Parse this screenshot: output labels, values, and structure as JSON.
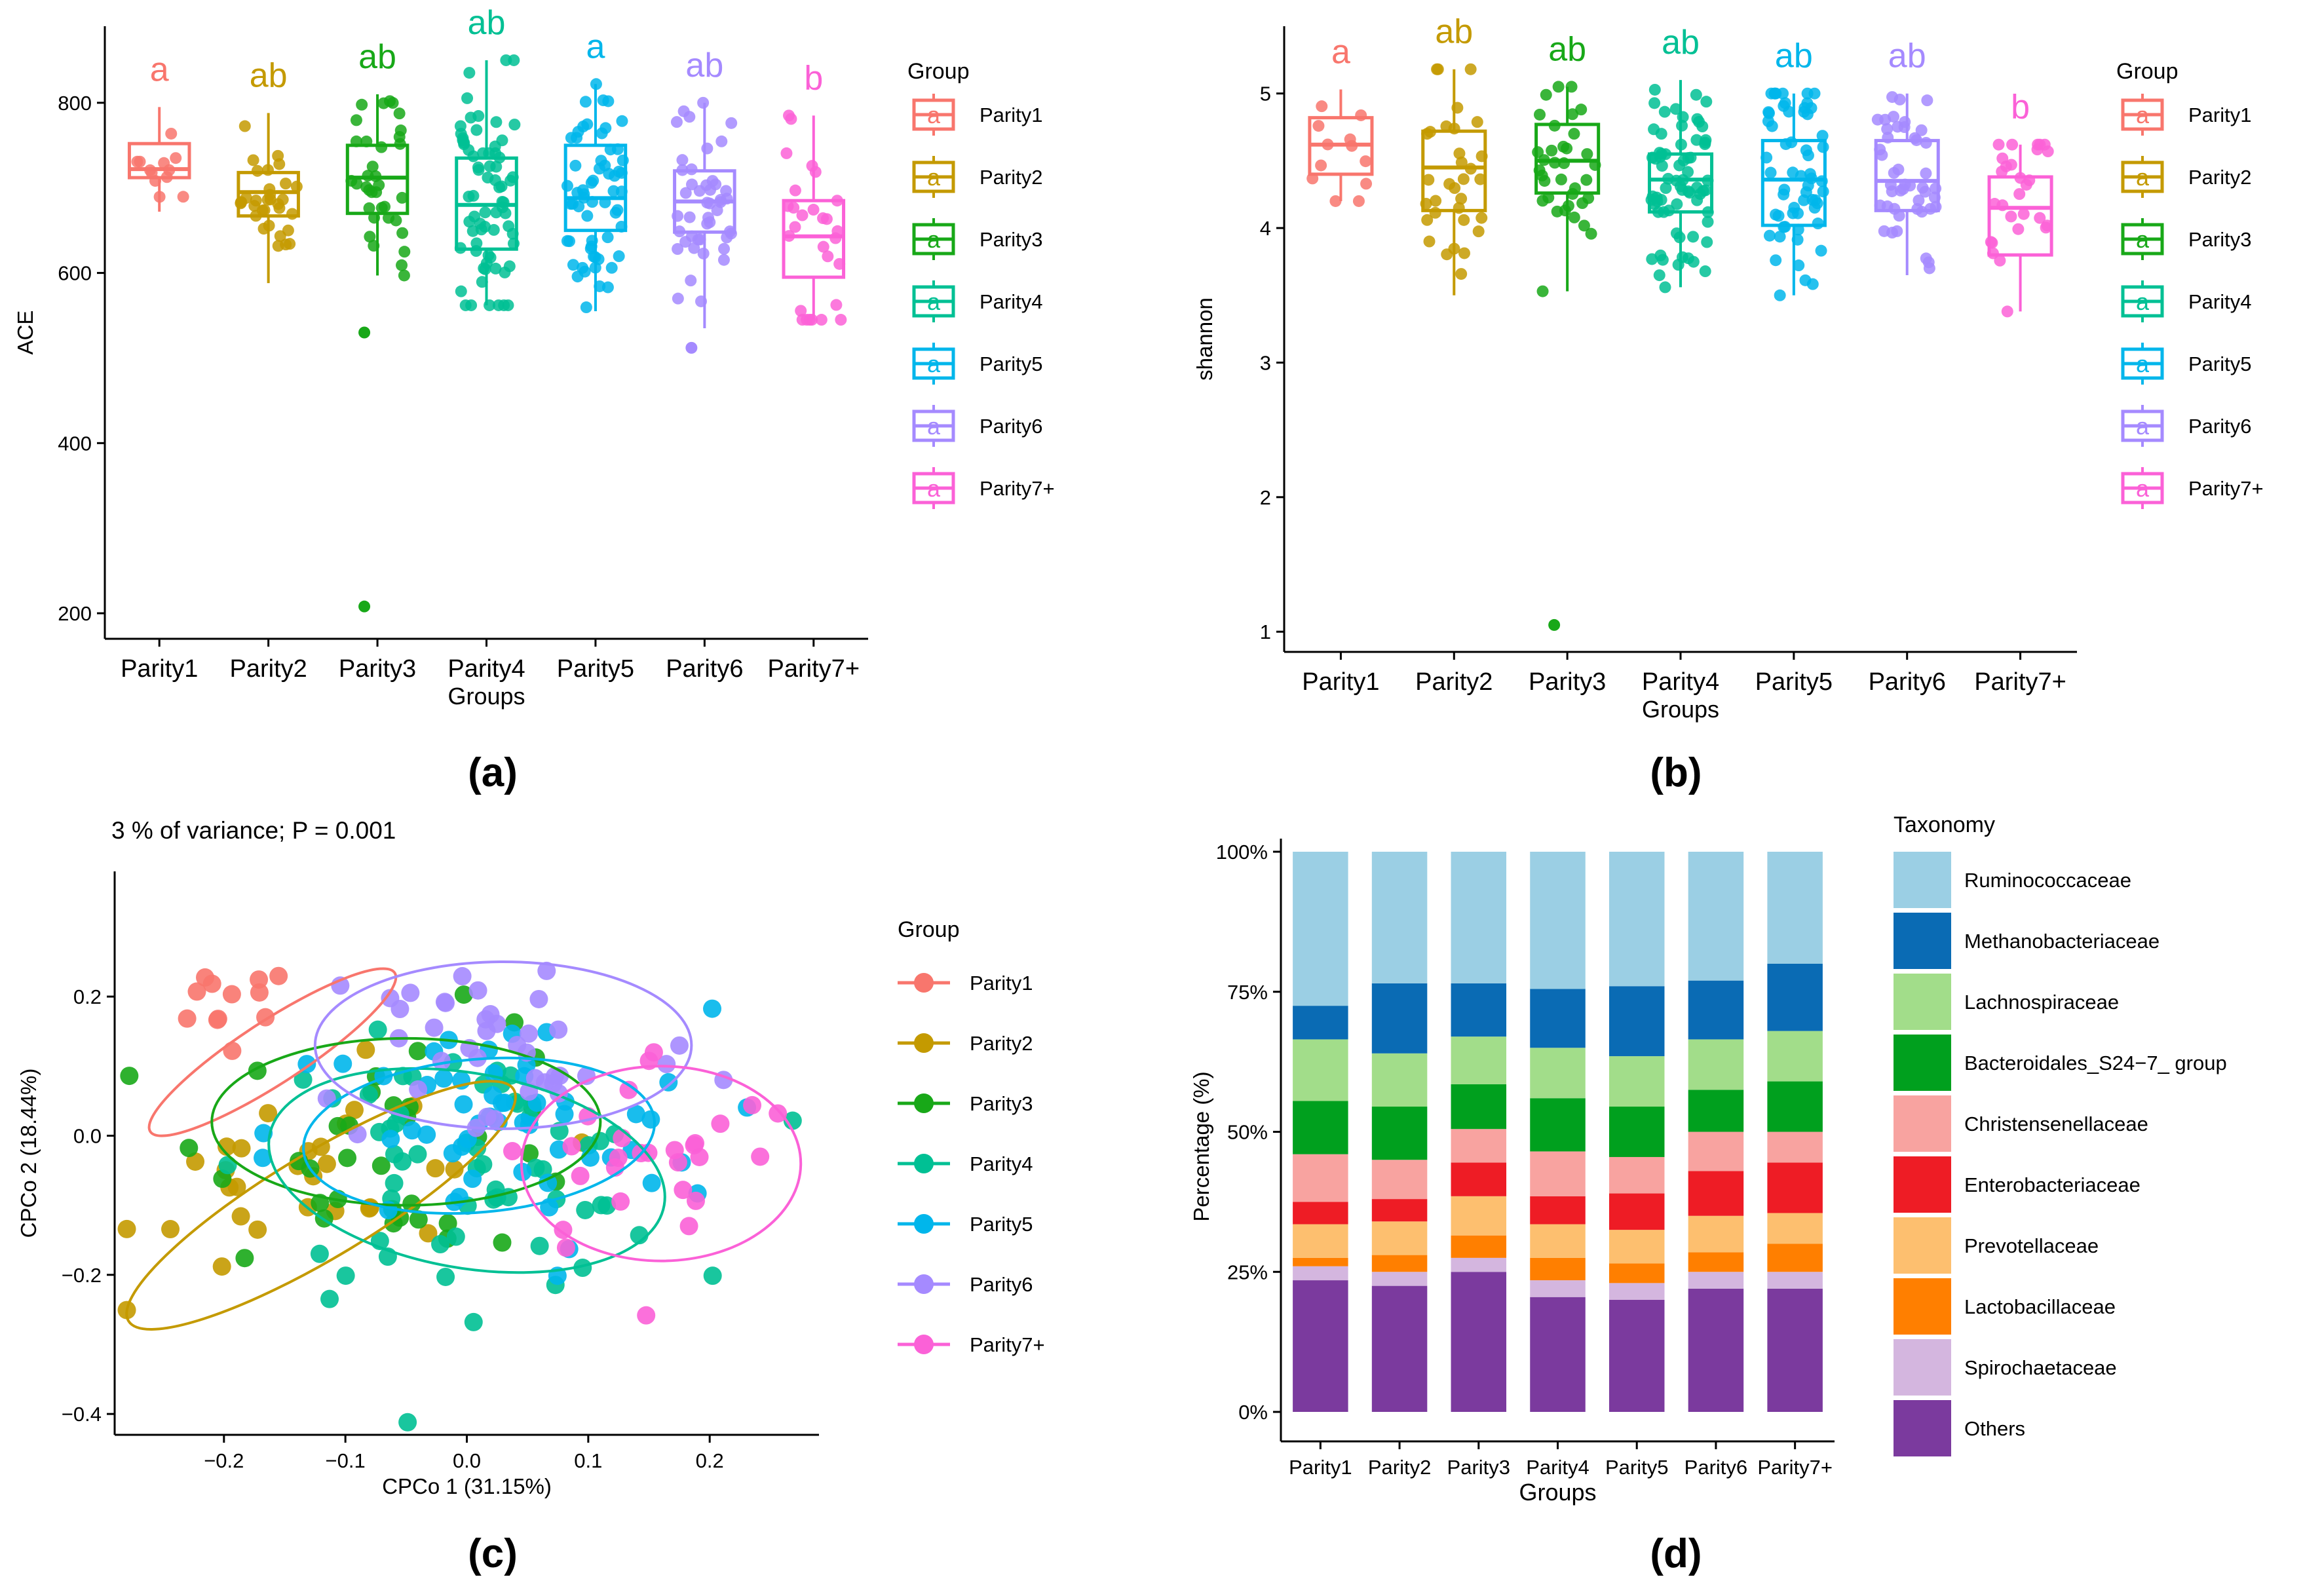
{
  "groups": [
    "Parity1",
    "Parity2",
    "Parity3",
    "Parity4",
    "Parity5",
    "Parity6",
    "Parity7+"
  ],
  "colors": {
    "Parity1": "#F8766D",
    "Parity2": "#C49A00",
    "Parity3": "#18A818",
    "Parity4": "#00C094",
    "Parity5": "#00B6EB",
    "Parity6": "#A58AFF",
    "Parity7+": "#FB61D7"
  },
  "chart_data": [
    {
      "panel": "(a)",
      "type": "box",
      "title": "",
      "xlabel": "Groups",
      "ylabel": "ACE",
      "ylim": [
        170,
        890
      ],
      "yticks": [
        200,
        400,
        600,
        800
      ],
      "categories": [
        "Parity1",
        "Parity2",
        "Parity3",
        "Parity4",
        "Parity5",
        "Parity6",
        "Parity7+"
      ],
      "letters": [
        "a",
        "ab",
        "ab",
        "ab",
        "a",
        "ab",
        "b"
      ],
      "boxes": [
        {
          "min": 672,
          "q1": 712,
          "median": 722,
          "q3": 752,
          "max": 795
        },
        {
          "min": 588,
          "q1": 667,
          "median": 695,
          "q3": 718,
          "max": 788
        },
        {
          "min": 597,
          "q1": 670,
          "median": 712,
          "q3": 750,
          "max": 810
        },
        {
          "min": 562,
          "q1": 628,
          "median": 680,
          "q3": 735,
          "max": 850
        },
        {
          "min": 555,
          "q1": 650,
          "median": 688,
          "q3": 750,
          "max": 822
        },
        {
          "min": 535,
          "q1": 648,
          "median": 684,
          "q3": 720,
          "max": 800
        },
        {
          "min": 545,
          "q1": 595,
          "median": 643,
          "q3": 685,
          "max": 785
        }
      ],
      "outliers": [
        {
          "group": "Parity3",
          "value": 208
        },
        {
          "group": "Parity3",
          "value": 530
        },
        {
          "group": "Parity6",
          "value": 512
        }
      ],
      "point_counts": [
        12,
        32,
        35,
        70,
        60,
        45,
        28
      ],
      "legend_title": "Group",
      "legend_position": "right"
    },
    {
      "panel": "(b)",
      "type": "box",
      "title": "",
      "xlabel": "Groups",
      "ylabel": "shannon",
      "ylim": [
        0.85,
        5.5
      ],
      "yticks": [
        1,
        2,
        3,
        4,
        5
      ],
      "categories": [
        "Parity1",
        "Parity2",
        "Parity3",
        "Parity4",
        "Parity5",
        "Parity6",
        "Parity7+"
      ],
      "letters": [
        "a",
        "ab",
        "ab",
        "ab",
        "ab",
        "ab",
        "b"
      ],
      "boxes": [
        {
          "min": 4.2,
          "q1": 4.4,
          "median": 4.62,
          "q3": 4.82,
          "max": 5.03
        },
        {
          "min": 3.5,
          "q1": 4.13,
          "median": 4.45,
          "q3": 4.72,
          "max": 5.18
        },
        {
          "min": 3.53,
          "q1": 4.26,
          "median": 4.5,
          "q3": 4.77,
          "max": 5.05
        },
        {
          "min": 3.56,
          "q1": 4.12,
          "median": 4.36,
          "q3": 4.55,
          "max": 5.1
        },
        {
          "min": 3.5,
          "q1": 4.02,
          "median": 4.36,
          "q3": 4.65,
          "max": 5.0
        },
        {
          "min": 3.65,
          "q1": 4.13,
          "median": 4.35,
          "q3": 4.65,
          "max": 5.0
        },
        {
          "min": 3.38,
          "q1": 3.8,
          "median": 4.15,
          "q3": 4.38,
          "max": 4.62
        }
      ],
      "outliers": [
        {
          "group": "Parity3",
          "value": 1.05
        }
      ],
      "point_counts": [
        12,
        32,
        35,
        70,
        60,
        45,
        28
      ],
      "legend_title": "Group",
      "legend_position": "right"
    },
    {
      "panel": "(c)",
      "type": "scatter",
      "title": "3 % of variance; P = 0.001",
      "xlabel": "CPCo 1 (31.15%)",
      "ylabel": "CPCo 2 (18.44%)",
      "xlim": [
        -0.29,
        0.29
      ],
      "ylim": [
        -0.43,
        0.38
      ],
      "xticks": [
        -0.2,
        -0.1,
        0.0,
        0.1,
        0.2
      ],
      "yticks": [
        -0.4,
        -0.2,
        0.0,
        0.2
      ],
      "xtick_labels": [
        "−0.2",
        "−0.1",
        "0.0",
        "0.1",
        "0.2"
      ],
      "ytick_labels": [
        "−0.4",
        "−0.2",
        "0.0",
        "0.2"
      ],
      "ellipses": [
        {
          "group": "Parity1",
          "cx": -0.16,
          "cy": 0.12,
          "rx": 0.12,
          "ry": 0.045,
          "angle_deg": 33
        },
        {
          "group": "Parity2",
          "cx": -0.12,
          "cy": -0.1,
          "rx": 0.185,
          "ry": 0.075,
          "angle_deg": 31
        },
        {
          "group": "Parity3",
          "cx": -0.05,
          "cy": 0.02,
          "rx": 0.16,
          "ry": 0.12,
          "angle_deg": 0
        },
        {
          "group": "Parity4",
          "cx": 0.0,
          "cy": -0.05,
          "rx": 0.165,
          "ry": 0.14,
          "angle_deg": -10
        },
        {
          "group": "Parity5",
          "cx": 0.01,
          "cy": 0.0,
          "rx": 0.145,
          "ry": 0.11,
          "angle_deg": 5
        },
        {
          "group": "Parity6",
          "cx": 0.03,
          "cy": 0.13,
          "rx": 0.155,
          "ry": 0.12,
          "angle_deg": 0
        },
        {
          "group": "Parity7+",
          "cx": 0.16,
          "cy": -0.04,
          "rx": 0.115,
          "ry": 0.14,
          "angle_deg": 0
        }
      ],
      "clusters": [
        {
          "group": "Parity1",
          "n": 12,
          "cx": -0.2,
          "cy": 0.18,
          "sx": 0.03,
          "sy": 0.035
        },
        {
          "group": "Parity2",
          "n": 30,
          "cx": -0.11,
          "cy": -0.06,
          "sx": 0.085,
          "sy": 0.075
        },
        {
          "group": "Parity3",
          "n": 35,
          "cx": -0.05,
          "cy": 0.0,
          "sx": 0.08,
          "sy": 0.085
        },
        {
          "group": "Parity4",
          "n": 60,
          "cx": 0.0,
          "cy": -0.05,
          "sx": 0.085,
          "sy": 0.09
        },
        {
          "group": "Parity5",
          "n": 55,
          "cx": 0.02,
          "cy": 0.0,
          "sx": 0.09,
          "sy": 0.09
        },
        {
          "group": "Parity6",
          "n": 40,
          "cx": 0.03,
          "cy": 0.13,
          "sx": 0.085,
          "sy": 0.08
        },
        {
          "group": "Parity7+",
          "n": 28,
          "cx": 0.16,
          "cy": -0.03,
          "sx": 0.065,
          "sy": 0.08
        }
      ],
      "legend_title": "Group",
      "legend_position": "right"
    },
    {
      "panel": "(d)",
      "type": "stacked_bar",
      "title": "",
      "xlabel": "Groups",
      "ylabel": "Percentage (%)",
      "ylim": [
        0,
        100
      ],
      "yticks": [
        0,
        25,
        50,
        75,
        100
      ],
      "ytick_labels": [
        "0%",
        "25%",
        "50%",
        "75%",
        "100%"
      ],
      "categories": [
        "Parity1",
        "Parity2",
        "Parity3",
        "Parity4",
        "Parity5",
        "Parity6",
        "Parity7+"
      ],
      "legend_title": "Taxonomy",
      "legend_position": "right",
      "series": [
        {
          "name": "Others",
          "color": "#7B3A9E",
          "values": [
            23.5,
            22.5,
            25.0,
            20.5,
            20.0,
            22.0,
            22.0
          ]
        },
        {
          "name": "Spirochaetaceae",
          "color": "#D4B6DF",
          "values": [
            2.5,
            2.5,
            2.5,
            3.0,
            3.0,
            3.0,
            3.0
          ]
        },
        {
          "name": "Lactobacillaceae",
          "color": "#FF7F00",
          "values": [
            1.5,
            3.0,
            4.0,
            4.0,
            3.5,
            3.5,
            5.0
          ]
        },
        {
          "name": "Prevotellaceae",
          "color": "#FDBF6F",
          "values": [
            6.0,
            6.0,
            7.0,
            6.0,
            6.0,
            6.5,
            5.5
          ]
        },
        {
          "name": "Enterobacteriaceae",
          "color": "#EE1C25",
          "values": [
            4.0,
            4.0,
            6.0,
            5.0,
            6.5,
            8.0,
            9.0
          ]
        },
        {
          "name": "Christensenellaceae",
          "color": "#F8A3A0",
          "values": [
            8.5,
            7.0,
            6.0,
            8.0,
            6.5,
            7.0,
            5.5
          ]
        },
        {
          "name": "Bacteroidales_S24−7_ group",
          "color": "#00A01E",
          "values": [
            9.5,
            9.5,
            8.0,
            9.5,
            9.0,
            7.5,
            9.0
          ]
        },
        {
          "name": "Lachnospiraceae",
          "color": "#A2DD8A",
          "values": [
            11.0,
            9.5,
            8.5,
            9.0,
            9.0,
            9.0,
            9.0
          ]
        },
        {
          "name": "Methanobacteriaceae",
          "color": "#0A6BB4",
          "values": [
            6.0,
            12.5,
            9.5,
            10.5,
            12.5,
            10.5,
            12.0
          ]
        },
        {
          "name": "Ruminococcaceae",
          "color": "#9BCFE4",
          "values": [
            27.5,
            23.5,
            23.5,
            24.5,
            24.0,
            23.0,
            20.0
          ]
        }
      ]
    }
  ],
  "panel_labels": [
    "(a)",
    "(b)",
    "(c)",
    "(d)"
  ]
}
